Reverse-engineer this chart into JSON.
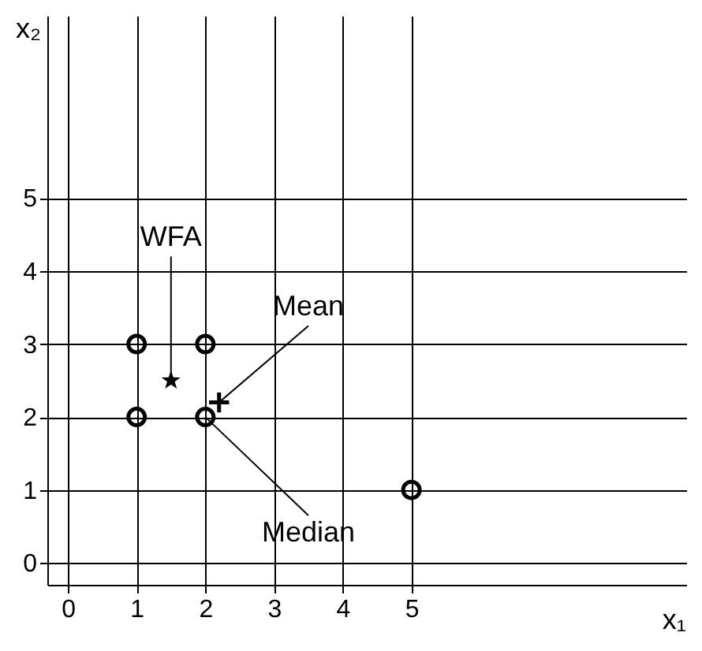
{
  "chart_data": {
    "type": "scatter",
    "xlabel": "x₁",
    "ylabel": "x₂",
    "xlim": [
      -0.3,
      9
    ],
    "ylim": [
      -0.3,
      7.5
    ],
    "xticks": [
      0,
      1,
      2,
      3,
      4,
      5
    ],
    "yticks": [
      0,
      1,
      2,
      3,
      4,
      5
    ],
    "grid": true,
    "series": [
      {
        "color": "#000000",
        "marker": "circle",
        "x": [
          1,
          2,
          1,
          2,
          5
        ],
        "values": [
          3,
          3,
          2,
          2,
          1
        ]
      },
      {
        "color": "#000000",
        "marker": "star",
        "x": [
          1.5
        ],
        "values": [
          2.5
        ]
      },
      {
        "color": "#000000",
        "marker": "cross",
        "x": [
          2.2
        ],
        "values": [
          2.2
        ]
      }
    ],
    "annotations": [
      {
        "text": "WFA",
        "x": 1.5,
        "y": 2.5
      },
      {
        "text": "Mean",
        "x": 2.2,
        "y": 2.2
      },
      {
        "text": "Median",
        "x": 2,
        "y": 2
      }
    ]
  }
}
